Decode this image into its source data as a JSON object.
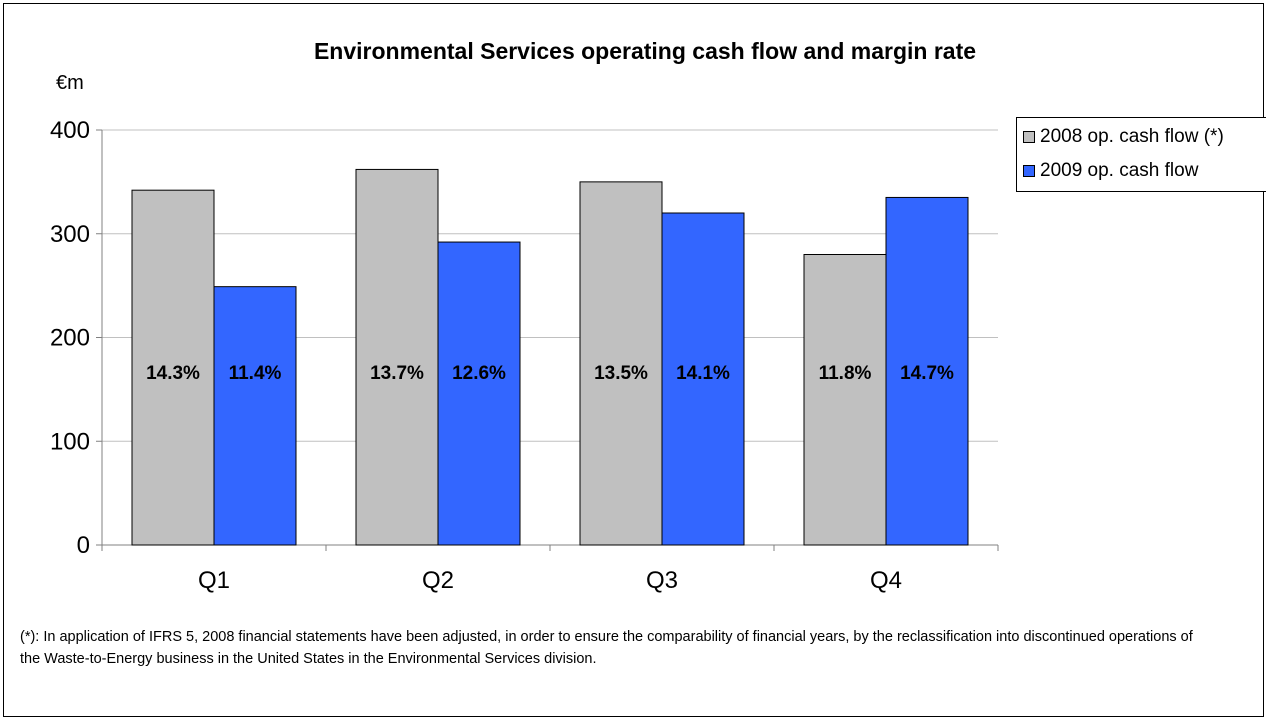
{
  "chart_data": {
    "type": "bar",
    "title": "Environmental Services operating cash flow and margin rate",
    "ylabel": "€m",
    "xlabel": "",
    "ylim": [
      0,
      400
    ],
    "yticks": [
      0,
      100,
      200,
      300,
      400
    ],
    "categories": [
      "Q1",
      "Q2",
      "Q3",
      "Q4"
    ],
    "series": [
      {
        "name": "2008 op. cash flow (*)",
        "color": "#c0c0c0",
        "values": [
          342,
          362,
          350,
          280
        ],
        "labels": [
          "14.3%",
          "13.7%",
          "13.5%",
          "11.8%"
        ]
      },
      {
        "name": "2009 op. cash flow",
        "color": "#3366ff",
        "values": [
          249,
          292,
          320,
          335
        ],
        "labels": [
          "11.4%",
          "12.6%",
          "14.1%",
          "14.7%"
        ]
      }
    ],
    "grid": true,
    "legend_position": "right"
  },
  "footnote": "(*): In application of IFRS 5, 2008 financial statements have been adjusted, in order to ensure the comparability of financial years, by the reclassification into discontinued operations of the Waste-to-Energy business in the United States in the Environmental Services division."
}
